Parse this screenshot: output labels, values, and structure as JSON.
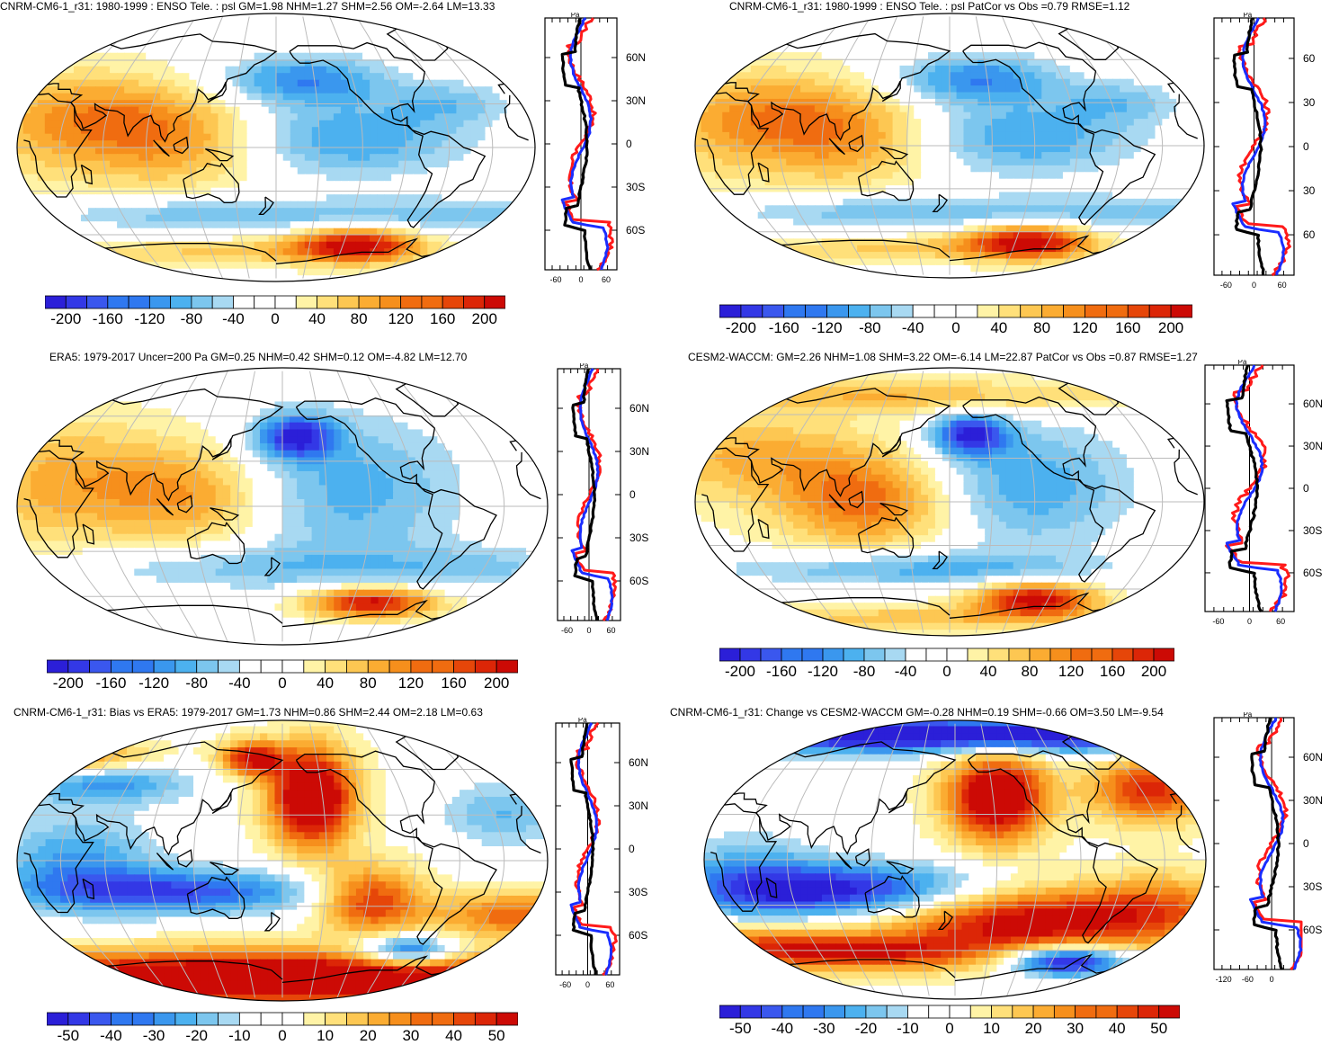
{
  "panels": [
    {
      "id": "p1",
      "title": "CNRM-CM6-1_r31: 1980-1999 : ENSO Tele. : psl GM=1.98 NHM=1.27 SHM=2.56 OM=-2.64 LM=13.33",
      "pattern": "model",
      "cbar_labels": [
        "-200",
        "-160",
        "-120",
        "-80",
        "-40",
        "0",
        "40",
        "80",
        "120",
        "160",
        "200"
      ],
      "profile": {
        "unit": "Pa",
        "lat_labels": [
          "60N",
          "30N",
          "0",
          "30S",
          "60S"
        ],
        "x_ticks": [
          "-60",
          "0",
          "60"
        ]
      }
    },
    {
      "id": "p2",
      "title": "CNRM-CM6-1_r31: 1980-1999 : ENSO Tele. : psl PatCor vs Obs =0.79 RMSE=1.12",
      "pattern": "model",
      "cbar_labels": [
        "-200",
        "-160",
        "-120",
        "-80",
        "-40",
        "0",
        "40",
        "80",
        "120",
        "160",
        "200"
      ],
      "profile": {
        "unit": "Pa",
        "lat_labels": [
          "60",
          "30",
          "0",
          "30",
          "60"
        ],
        "x_ticks": [
          "-60",
          "0",
          "60"
        ]
      }
    },
    {
      "id": "p3",
      "title": "ERA5: 1979-2017 Uncer=200 Pa GM=0.25 NHM=0.42 SHM=0.12 OM=-4.82 LM=12.70",
      "pattern": "obs",
      "cbar_labels": [
        "-200",
        "-160",
        "-120",
        "-80",
        "-40",
        "0",
        "40",
        "80",
        "120",
        "160",
        "200"
      ],
      "profile": {
        "unit": "Pa",
        "lat_labels": [
          "60N",
          "30N",
          "0",
          "30S",
          "60S"
        ],
        "x_ticks": [
          "-60",
          "0",
          "60"
        ]
      }
    },
    {
      "id": "p4",
      "title": "CESM2-WACCM: GM=2.26 NHM=1.08 SHM=3.22 OM=-6.14 LM=22.87 PatCor vs Obs =0.87 RMSE=1.27",
      "pattern": "cesm",
      "cbar_labels": [
        "-200",
        "-160",
        "-120",
        "-80",
        "-40",
        "0",
        "40",
        "80",
        "120",
        "160",
        "200"
      ],
      "profile": {
        "unit": "Pa",
        "lat_labels": [
          "60N",
          "30N",
          "0",
          "30S",
          "60S"
        ],
        "x_ticks": [
          "-60",
          "0",
          "60"
        ]
      }
    },
    {
      "id": "p5",
      "title": "CNRM-CM6-1_r31: Bias vs ERA5: 1979-2017 GM=1.73 NHM=0.86 SHM=2.44 OM=2.18 LM=0.63",
      "pattern": "bias",
      "cbar_labels": [
        "-50",
        "-40",
        "-30",
        "-20",
        "-10",
        "0",
        "10",
        "20",
        "30",
        "40",
        "50"
      ],
      "profile": {
        "unit": "Pa",
        "lat_labels": [
          "60N",
          "30N",
          "0",
          "30S",
          "60S"
        ],
        "x_ticks": [
          "-60",
          "0",
          "60"
        ]
      }
    },
    {
      "id": "p6",
      "title": "CNRM-CM6-1_r31: Change vs CESM2-WACCM GM=-0.28 NHM=0.19 SHM=-0.66 OM=3.50 LM=-9.54",
      "pattern": "change",
      "cbar_labels": [
        "-50",
        "-40",
        "-30",
        "-20",
        "-10",
        "0",
        "10",
        "20",
        "30",
        "40",
        "50"
      ],
      "profile": {
        "unit": "Pa",
        "lat_labels": [
          "60N",
          "30N",
          "0",
          "30S",
          "60S"
        ],
        "x_ticks": [
          "-120",
          "-60",
          "0"
        ]
      }
    }
  ],
  "colors": {
    "palette": [
      "#2b1fd8",
      "#3338e6",
      "#3a57ee",
      "#2f78f0",
      "#3a97ee",
      "#4cb1ef",
      "#7cc6ee",
      "#a8d9f2",
      "#ffffff",
      "#ffffff",
      "#fff3a6",
      "#ffe07a",
      "#fdc752",
      "#fbac32",
      "#f68f1c",
      "#f06c10",
      "#e64609",
      "#dc2607",
      "#cc0a05"
    ],
    "land": "#000000",
    "grid": "#bbbbbb",
    "line_red": "#ff1a1a",
    "line_blue": "#1a2dff",
    "line_black": "#000000"
  }
}
